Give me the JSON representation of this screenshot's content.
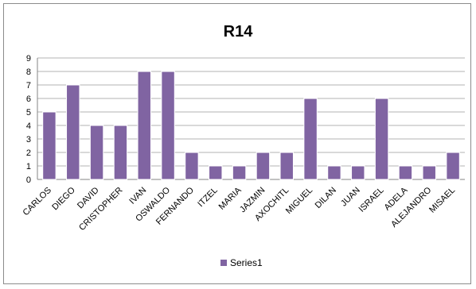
{
  "chart_data": {
    "type": "bar",
    "title": "R14",
    "categories": [
      "CARLOS",
      "DIEGO",
      "DAVID",
      "CRISTOPHER",
      "IVAN",
      "OSWALDO",
      "FERNANDO",
      "ITZEL",
      "MARIA",
      "JAZMIN",
      "AXOCHITL",
      "MIGUEL",
      "DILAN",
      "JUAN",
      "ISRAEL",
      "ADELA",
      "ALEJANDRO",
      "MISAEL"
    ],
    "series": [
      {
        "name": "Series1",
        "values": [
          5,
          7,
          4,
          4,
          8,
          8,
          2,
          1,
          1,
          2,
          2,
          6,
          1,
          1,
          6,
          1,
          1,
          2
        ],
        "color": "#8064a2"
      }
    ],
    "ylim": [
      0,
      9
    ],
    "yticks": [
      0,
      1,
      2,
      3,
      4,
      5,
      6,
      7,
      8,
      9
    ],
    "grid": true,
    "legend": "bottom-center"
  }
}
